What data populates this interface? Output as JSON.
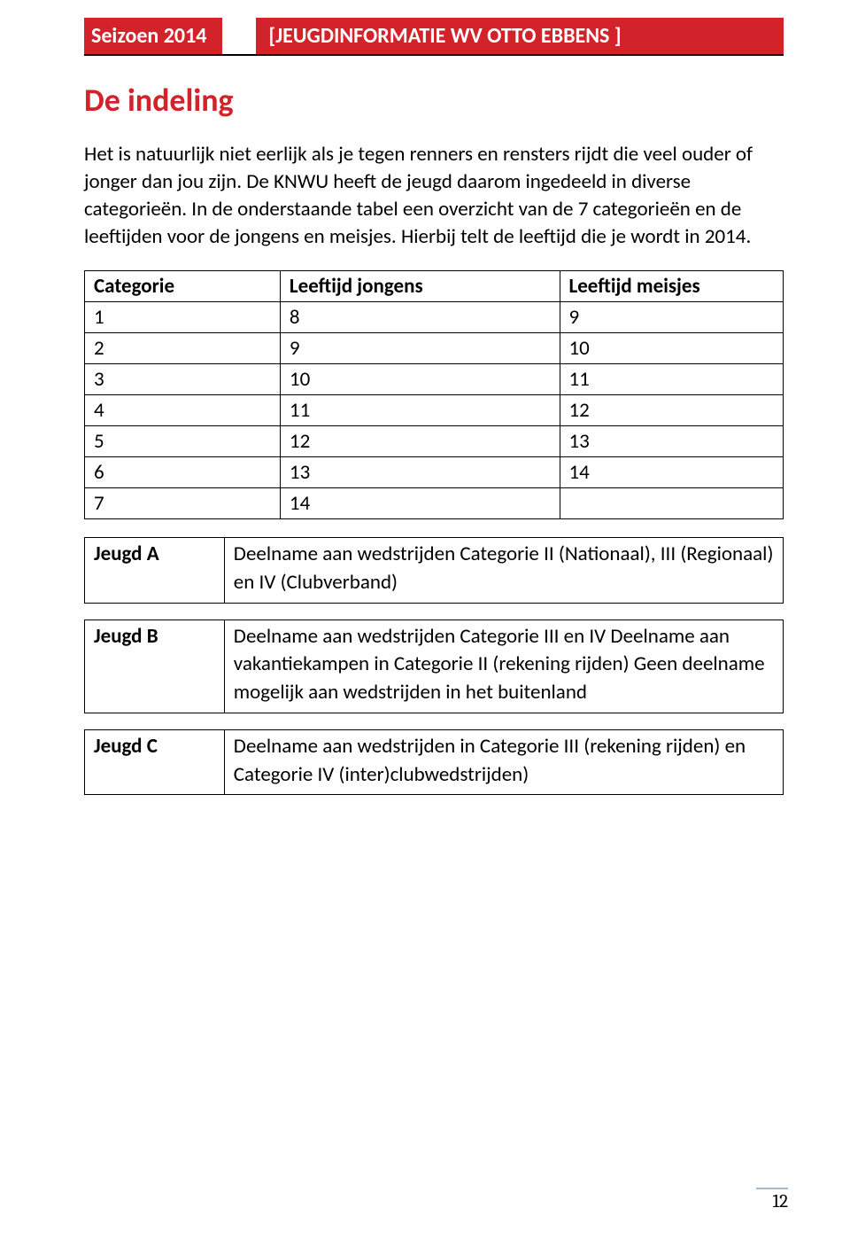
{
  "header": {
    "season": "Seizoen 2014",
    "title": "[JEUGDINFORMATIE  WV OTTO EBBENS ]"
  },
  "page_title": "De indeling",
  "paragraph": "Het is natuurlijk niet eerlijk als je tegen renners en rensters rijdt die veel ouder of jonger dan jou zijn. De KNWU heeft de jeugd daarom ingedeeld in diverse categorieën. In de onderstaande tabel een overzicht van de 7 categorieën en de leeftijden voor de jongens en meisjes. Hierbij telt de leeftijd die je wordt in 2014.",
  "age_table": {
    "type": "table",
    "columns": [
      "Categorie",
      "Leeftijd jongens",
      "Leeftijd meisjes"
    ],
    "rows": [
      [
        "1",
        "8",
        "9"
      ],
      [
        "2",
        "9",
        "10"
      ],
      [
        "3",
        "10",
        "11"
      ],
      [
        "4",
        "11",
        "12"
      ],
      [
        "5",
        "12",
        "13"
      ],
      [
        "6",
        "13",
        "14"
      ],
      [
        "7",
        "14",
        ""
      ]
    ],
    "border_color": "#000000",
    "header_fontweight": "bold",
    "font_size": 23
  },
  "jeugd_table": {
    "type": "table",
    "rows": [
      {
        "label": "Jeugd A",
        "text": "Deelname aan wedstrijden Categorie II (Nationaal), III (Regionaal) en IV (Clubverband)"
      },
      {
        "label": "Jeugd B",
        "text": "Deelname aan wedstrijden Categorie III en IV Deelname aan vakantiekampen in Categorie II (rekening rijden) Geen deelname mogelijk aan wedstrijden in het buitenland"
      },
      {
        "label": "Jeugd C",
        "text": "Deelname aan wedstrijden in Categorie III (rekening rijden) en Categorie IV (inter)clubwedstrijden)"
      }
    ],
    "label_fontweight": "bold",
    "border_color": "#000000",
    "font_size": 23
  },
  "colors": {
    "accent_red": "#d2232a",
    "text": "#000000",
    "background": "#ffffff",
    "footer_rule": "#a9b8c8"
  },
  "page_number": "12"
}
